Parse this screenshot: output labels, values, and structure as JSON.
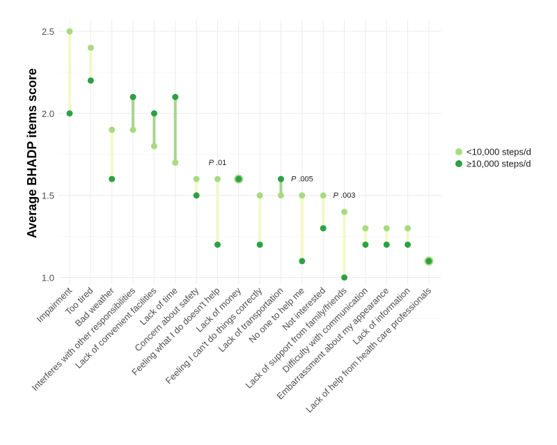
{
  "chart_data": {
    "type": "scatter",
    "subtype": "dumbbell",
    "title": "",
    "xlabel": "",
    "ylabel": "Average BHADP items score",
    "ylim": [
      1.0,
      2.5
    ],
    "yticks": [
      "1.0",
      "1.5",
      "2.0",
      "2.5"
    ],
    "grid": true,
    "legend_position": "right",
    "categories": [
      "Impairment",
      "Too tired",
      "Bad weather",
      "Interferes with other responsibilities",
      "Lack of convenient facilities",
      "Lack of time",
      "Concern about safety",
      "Feeling what I do doesn't help",
      "Lack of money",
      "Feeling I can't do things correctly",
      "Lack of transportation",
      "No one to help me",
      "Not interested",
      "Lack of support from family/friends",
      "Difficulty with communication",
      "Embarrassment about my appearance",
      "Lack of information",
      "Lack of help from health care professionals"
    ],
    "series": [
      {
        "name": "<10,000 steps/d",
        "color": "#a6db7f",
        "values": [
          2.5,
          2.4,
          1.9,
          1.9,
          1.8,
          1.7,
          1.6,
          1.6,
          1.6,
          1.5,
          1.5,
          1.5,
          1.5,
          1.4,
          1.3,
          1.3,
          1.3,
          1.1
        ]
      },
      {
        "name": "≥10,000 steps/d",
        "color": "#2ea043",
        "values": [
          2.0,
          2.2,
          1.6,
          2.1,
          2.0,
          2.1,
          1.5,
          1.2,
          1.6,
          1.2,
          1.6,
          1.1,
          1.3,
          1.0,
          1.2,
          1.2,
          1.2,
          1.1
        ]
      }
    ],
    "connector_colors": {
      "low_higher": "#f3f8c8",
      "high_higher": "#a8d48e"
    },
    "annotations": [
      {
        "category_index": 7,
        "prefix": "P",
        "value": ".01"
      },
      {
        "category_index": 11,
        "prefix": "P",
        "value": ".005"
      },
      {
        "category_index": 13,
        "prefix": "P",
        "value": ".003"
      }
    ]
  }
}
